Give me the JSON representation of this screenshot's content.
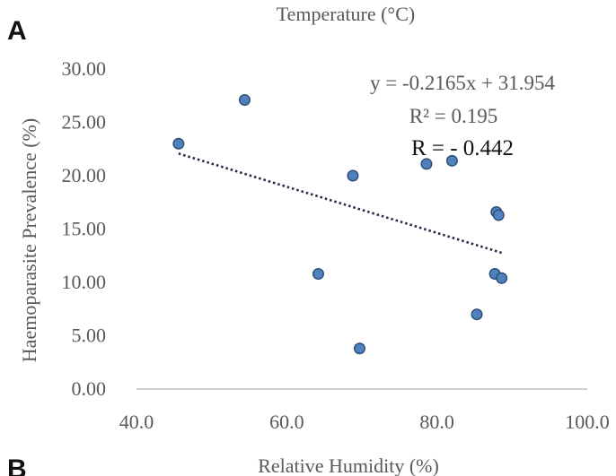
{
  "chart_data": {
    "type": "scatter",
    "panel_label": "A",
    "next_panel_label": "B",
    "top_title": "Temperature  (°C)",
    "xlabel": "Relative  Humidity  (%)",
    "ylabel": "Haemoparasite  Prevalence  (%)",
    "xlim": [
      40,
      100
    ],
    "ylim": [
      0,
      30
    ],
    "x_ticks": [
      {
        "value": 40,
        "label": "40.0"
      },
      {
        "value": 60,
        "label": "60.0"
      },
      {
        "value": 80,
        "label": "80.0"
      },
      {
        "value": 100,
        "label": "100.0"
      }
    ],
    "y_ticks": [
      {
        "value": 0,
        "label": "0.00"
      },
      {
        "value": 5,
        "label": "5.00"
      },
      {
        "value": 10,
        "label": "10.00"
      },
      {
        "value": 15,
        "label": "15.00"
      },
      {
        "value": 20,
        "label": "20.00"
      },
      {
        "value": 25,
        "label": "25.00"
      },
      {
        "value": 30,
        "label": "30.00"
      }
    ],
    "grid": false,
    "points": [
      {
        "x": 45.6,
        "y": 23.0
      },
      {
        "x": 54.4,
        "y": 27.1
      },
      {
        "x": 64.2,
        "y": 10.8
      },
      {
        "x": 68.8,
        "y": 20.0
      },
      {
        "x": 69.7,
        "y": 3.8
      },
      {
        "x": 78.6,
        "y": 21.1
      },
      {
        "x": 82.0,
        "y": 21.4
      },
      {
        "x": 85.3,
        "y": 7.0
      },
      {
        "x": 87.7,
        "y": 10.8
      },
      {
        "x": 87.9,
        "y": 16.6
      },
      {
        "x": 88.2,
        "y": 16.3
      },
      {
        "x": 88.6,
        "y": 10.4
      }
    ],
    "trendline": {
      "slope": -0.2165,
      "intercept": 31.954,
      "x_start": 45.6,
      "x_end": 88.6,
      "style": "dotted"
    },
    "equation_label": "y = -0.2165x + 31.954",
    "r2_label": "R² = 0.195",
    "r_label": "R =  - 0.442",
    "colors": {
      "point_fill": "#4f81bd",
      "point_stroke": "#2c4d75",
      "axis": "#bfbfbf",
      "text": "#595959",
      "trendline": "#1f2a44"
    }
  }
}
